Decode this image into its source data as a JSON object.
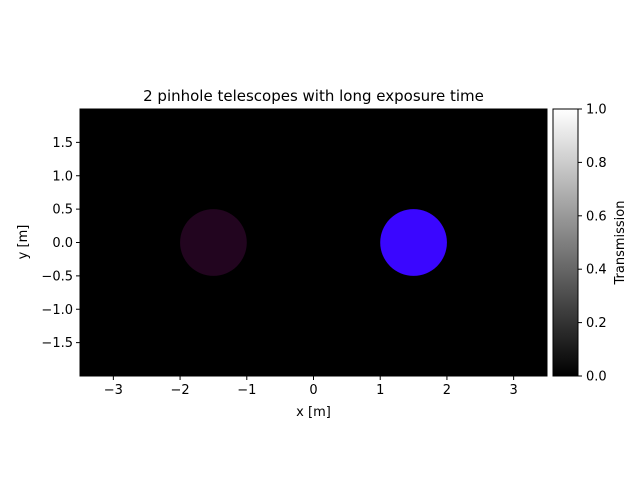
{
  "chart_data": {
    "type": "heatmap",
    "title": "2 pinhole telescopes with long exposure time",
    "xlabel": "x [m]",
    "ylabel": "y [m]",
    "xlim": [
      -3.5,
      3.5
    ],
    "ylim": [
      -2.0,
      2.0
    ],
    "x_ticks": [
      -3,
      -2,
      -1,
      0,
      1,
      2,
      3
    ],
    "x_tick_labels": [
      "−3",
      "−2",
      "−1",
      "0",
      "1",
      "2",
      "3"
    ],
    "y_ticks": [
      -1.5,
      -1.0,
      -0.5,
      0.0,
      0.5,
      1.0,
      1.5
    ],
    "y_tick_labels": [
      "−1.5",
      "−1.0",
      "−0.5",
      "0.0",
      "0.5",
      "1.0",
      "1.5"
    ],
    "background_color": "#000000",
    "apertures": [
      {
        "x": -1.5,
        "y": 0.0,
        "radius": 0.5,
        "color": "#22051f"
      },
      {
        "x": 1.5,
        "y": 0.0,
        "radius": 0.5,
        "color": "#3a06ff"
      }
    ],
    "colorbar": {
      "label": "Transmission",
      "range": [
        0.0,
        1.0
      ],
      "colormap": "gray",
      "ticks": [
        0.0,
        0.2,
        0.4,
        0.6,
        0.8,
        1.0
      ],
      "tick_labels": [
        "0.0",
        "0.2",
        "0.4",
        "0.6",
        "0.8",
        "1.0"
      ]
    }
  }
}
